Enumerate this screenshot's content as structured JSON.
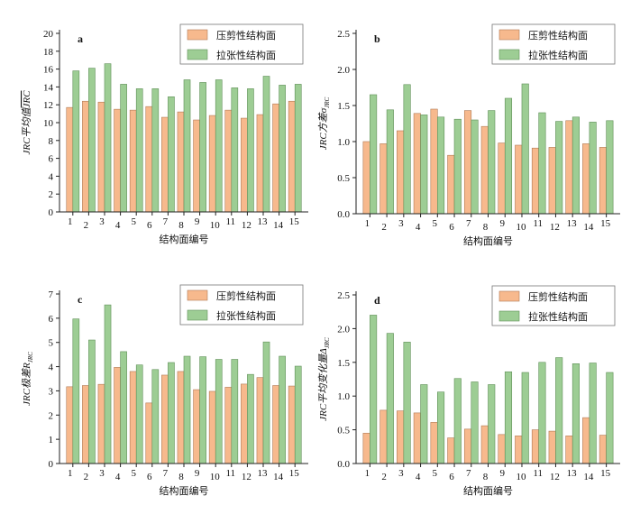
{
  "colors": {
    "shear": "#f7b98d",
    "tension": "#9dcd94"
  },
  "legend": {
    "shear": "压剪性结构面",
    "tension": "拉张性结构面"
  },
  "chart_data": [
    {
      "type": "bar",
      "panel": "a",
      "ylabel_main": "JRC平均值",
      "ylabel_tail": "JRC",
      "ylabel_tail_overline": true,
      "xlabel": "结构面编号",
      "ylim": [
        0,
        20
      ],
      "yticks": [
        0,
        2,
        4,
        6,
        8,
        10,
        12,
        14,
        16,
        18,
        20
      ],
      "ytick_labels": [
        "0",
        "2",
        "4",
        "6",
        "8",
        "10",
        "12",
        "14",
        "16",
        "18",
        "20"
      ],
      "categories": [
        "1",
        "2",
        "3",
        "4",
        "5",
        "6",
        "7",
        "8",
        "9",
        "10",
        "11",
        "12",
        "13",
        "14",
        "15"
      ],
      "series": [
        {
          "name": "压剪性结构面",
          "values": [
            11.7,
            12.4,
            12.3,
            11.5,
            11.4,
            11.8,
            10.6,
            11.2,
            10.3,
            10.8,
            11.4,
            10.5,
            10.9,
            12.1,
            12.4
          ]
        },
        {
          "name": "拉张性结构面",
          "values": [
            15.8,
            16.1,
            16.6,
            14.3,
            13.8,
            13.8,
            12.9,
            14.8,
            14.5,
            14.8,
            13.9,
            13.8,
            15.2,
            14.2,
            14.3
          ]
        }
      ]
    },
    {
      "type": "bar",
      "panel": "b",
      "ylabel_main": "JRC方差σ",
      "ylabel_sub": "JRC",
      "xlabel": "结构面编号",
      "ylim": [
        0,
        2.5
      ],
      "yticks": [
        0,
        0.5,
        1.0,
        1.5,
        2.0,
        2.5
      ],
      "ytick_labels": [
        "0.0",
        "0.5",
        "1.0",
        "1.5",
        "2.0",
        "2.5"
      ],
      "categories": [
        "1",
        "2",
        "3",
        "4",
        "5",
        "6",
        "7",
        "8",
        "9",
        "10",
        "11",
        "12",
        "13",
        "14",
        "15"
      ],
      "series": [
        {
          "name": "压剪性结构面",
          "values": [
            1.0,
            0.97,
            1.15,
            1.39,
            1.45,
            0.81,
            1.43,
            1.21,
            0.98,
            0.95,
            0.91,
            0.92,
            1.29,
            0.97,
            0.92
          ]
        },
        {
          "name": "拉张性结构面",
          "values": [
            1.65,
            1.44,
            1.79,
            1.37,
            1.34,
            1.31,
            1.3,
            1.43,
            1.6,
            1.8,
            1.4,
            1.28,
            1.34,
            1.27,
            1.29
          ]
        }
      ]
    },
    {
      "type": "bar",
      "panel": "c",
      "ylabel_main": "JRC极差R",
      "ylabel_sub": "JRC",
      "xlabel": "结构面编号",
      "ylim": [
        0,
        7
      ],
      "yticks": [
        0,
        1,
        2,
        3,
        4,
        5,
        6,
        7
      ],
      "ytick_labels": [
        "0",
        "1",
        "2",
        "3",
        "4",
        "5",
        "6",
        "7"
      ],
      "categories": [
        "1",
        "2",
        "3",
        "4",
        "5",
        "6",
        "7",
        "8",
        "9",
        "10",
        "11",
        "12",
        "13",
        "14",
        "15"
      ],
      "series": [
        {
          "name": "压剪性结构面",
          "values": [
            3.17,
            3.22,
            3.27,
            3.97,
            3.8,
            2.5,
            3.65,
            3.8,
            3.05,
            2.98,
            3.15,
            3.28,
            3.55,
            3.22,
            3.2
          ]
        },
        {
          "name": "拉张性结构面",
          "values": [
            5.97,
            5.1,
            6.55,
            4.62,
            4.07,
            3.88,
            4.17,
            4.43,
            4.41,
            4.3,
            4.3,
            3.68,
            5.02,
            4.43,
            4.02
          ]
        }
      ]
    },
    {
      "type": "bar",
      "panel": "d",
      "ylabel_main": "JRC平均变化量Δ",
      "ylabel_sub": "JRC",
      "xlabel": "结构面编号",
      "ylim": [
        0,
        2.5
      ],
      "yticks": [
        0,
        0.5,
        1.0,
        1.5,
        2.0,
        2.5
      ],
      "ytick_labels": [
        "0.0",
        "0.5",
        "1.0",
        "1.5",
        "2.0",
        "2.5"
      ],
      "categories": [
        "1",
        "2",
        "3",
        "4",
        "5",
        "6",
        "7",
        "8",
        "9",
        "10",
        "11",
        "12",
        "13",
        "14",
        "15"
      ],
      "series": [
        {
          "name": "压剪性结构面",
          "values": [
            0.45,
            0.79,
            0.78,
            0.75,
            0.61,
            0.38,
            0.51,
            0.56,
            0.43,
            0.41,
            0.5,
            0.48,
            0.41,
            0.68,
            0.42
          ]
        },
        {
          "name": "拉张性结构面",
          "values": [
            2.2,
            1.93,
            1.8,
            1.17,
            1.06,
            1.26,
            1.21,
            1.17,
            1.36,
            1.35,
            1.5,
            1.57,
            1.48,
            1.49,
            1.35
          ]
        }
      ]
    }
  ]
}
